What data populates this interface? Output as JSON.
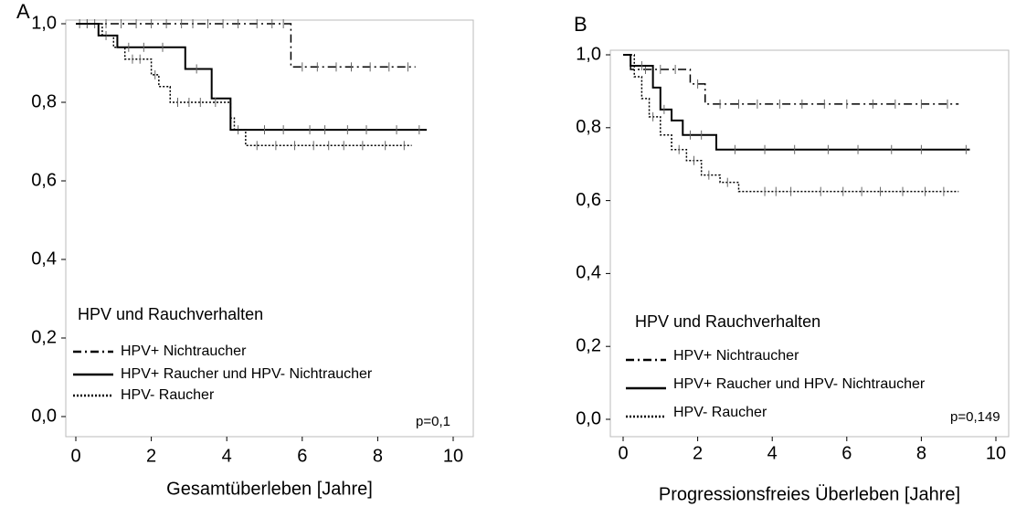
{
  "chart_data": [
    {
      "type": "line",
      "step": true,
      "panel": "A",
      "x_label": "Gesamtüberleben [Jahre]",
      "legend_title": "HPV und Rauchverhalten",
      "annotation": "p=0,1",
      "xlim": [
        0,
        10
      ],
      "xticks": [
        0,
        2,
        4,
        6,
        8,
        10
      ],
      "ylim": [
        0,
        1
      ],
      "yticks": [
        {
          "value": 0,
          "label": "0,0"
        },
        {
          "value": 0.2,
          "label": "0,2"
        },
        {
          "value": 0.4,
          "label": "0,4"
        },
        {
          "value": 0.6,
          "label": "0,6"
        },
        {
          "value": 0.8,
          "label": "0,8"
        },
        {
          "value": 1,
          "label": "1,0"
        }
      ],
      "series": [
        {
          "name": "HPV+ Nichtraucher",
          "color": "#000000",
          "linestyle": "dashdot",
          "x": [
            0,
            5.7,
            9.0
          ],
          "values": [
            1.0,
            0.89,
            0.89
          ],
          "censored": [
            0.1,
            0.3,
            0.5,
            0.8,
            1.2,
            1.6,
            2.0,
            2.4,
            2.8,
            3.1,
            3.5,
            3.9,
            4.3,
            4.8,
            5.2,
            5.5,
            6.0,
            6.4,
            6.9,
            7.3,
            7.8,
            8.3,
            8.8
          ]
        },
        {
          "name": "HPV+ Raucher und HPV- Nichtraucher",
          "color": "#000000",
          "linestyle": "solid",
          "x": [
            0,
            0.6,
            1.1,
            2.9,
            3.6,
            4.1,
            9.3
          ],
          "values": [
            1.0,
            0.97,
            0.94,
            0.885,
            0.81,
            0.73,
            0.73
          ],
          "censored": [
            0.3,
            0.8,
            1.4,
            1.8,
            2.3,
            3.2,
            4.3,
            5.0,
            5.5,
            6.2,
            6.6,
            7.2,
            7.7,
            8.5,
            9.1
          ]
        },
        {
          "name": "HPV-  Raucher",
          "color": "#000000",
          "linestyle": "dotted",
          "x": [
            0,
            0.7,
            1.0,
            1.3,
            2.0,
            2.2,
            2.5,
            4.1,
            4.2,
            4.5,
            8.9
          ],
          "values": [
            1.0,
            0.97,
            0.94,
            0.91,
            0.87,
            0.84,
            0.8,
            0.76,
            0.73,
            0.69,
            0.69
          ],
          "censored": [
            1.5,
            1.7,
            2.1,
            2.7,
            3.0,
            3.3,
            3.7,
            4.8,
            5.3,
            5.8,
            6.3,
            6.7,
            7.1,
            7.6,
            8.2,
            8.7
          ]
        }
      ]
    },
    {
      "type": "line",
      "step": true,
      "panel": "B",
      "x_label": "Progressionsfreies Überleben [Jahre]",
      "legend_title": "HPV und Rauchverhalten",
      "annotation": "p=0,149",
      "xlim": [
        0,
        10
      ],
      "xticks": [
        0,
        2,
        4,
        6,
        8,
        10
      ],
      "ylim": [
        0,
        1
      ],
      "yticks": [
        {
          "value": 0,
          "label": "0,0"
        },
        {
          "value": 0.2,
          "label": "0,2"
        },
        {
          "value": 0.4,
          "label": "0,4"
        },
        {
          "value": 0.6,
          "label": "0,6"
        },
        {
          "value": 0.8,
          "label": "0,8"
        },
        {
          "value": 1,
          "label": "1,0"
        }
      ],
      "series": [
        {
          "name": "HPV+ Nichtraucher",
          "color": "#000000",
          "linestyle": "dashdot",
          "x": [
            0,
            0.2,
            1.8,
            2.2,
            9.0
          ],
          "values": [
            1.0,
            0.96,
            0.92,
            0.865,
            0.865
          ],
          "censored": [
            0.6,
            1.0,
            1.4,
            2.0,
            2.6,
            3.1,
            3.6,
            4.2,
            4.8,
            5.4,
            6.0,
            6.7,
            7.3,
            8.0,
            8.7
          ]
        },
        {
          "name": "HPV+ Raucher und HPV- Nichtraucher",
          "color": "#000000",
          "linestyle": "solid",
          "x": [
            0,
            0.2,
            0.8,
            1.0,
            1.3,
            1.6,
            2.5,
            9.3
          ],
          "values": [
            1.0,
            0.97,
            0.91,
            0.85,
            0.82,
            0.78,
            0.74,
            0.74
          ],
          "censored": [
            0.5,
            1.1,
            1.8,
            2.1,
            3.0,
            3.8,
            4.6,
            5.5,
            6.3,
            7.2,
            8.0,
            9.2
          ]
        },
        {
          "name": "HPV- Raucher",
          "color": "#000000",
          "linestyle": "dotted",
          "x": [
            0,
            0.3,
            0.5,
            0.7,
            1.0,
            1.3,
            1.7,
            2.1,
            2.6,
            3.1,
            3.6,
            9.0
          ],
          "values": [
            1.0,
            0.94,
            0.88,
            0.83,
            0.78,
            0.74,
            0.71,
            0.67,
            0.65,
            0.625,
            0.625,
            0.625
          ],
          "censored": [
            0.8,
            1.5,
            1.9,
            2.3,
            2.8,
            3.8,
            4.1,
            4.5,
            5.3,
            5.9,
            6.4,
            6.9,
            7.5,
            8.1,
            8.6
          ]
        }
      ]
    }
  ]
}
